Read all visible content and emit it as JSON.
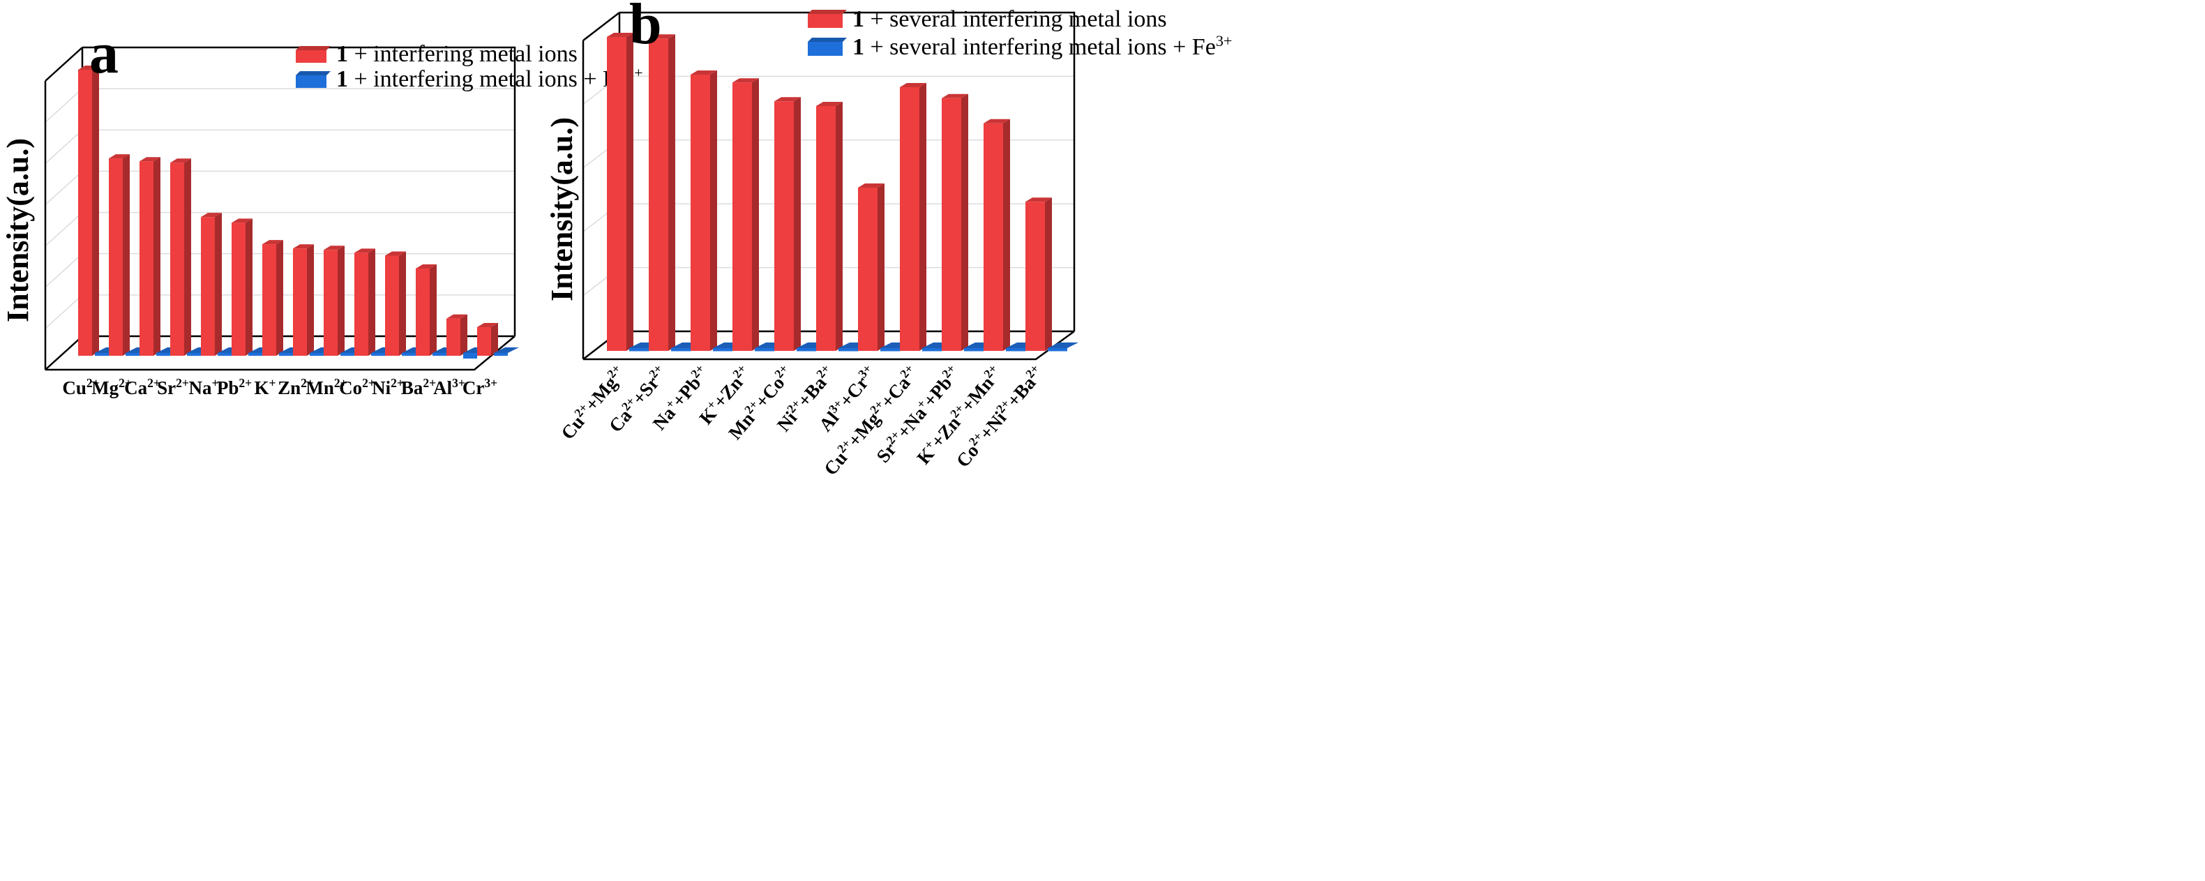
{
  "chart_data": [
    {
      "type": "bar",
      "panel_label": "a",
      "title": "",
      "ylabel": "Intensity(a.u.)",
      "xlabel": "",
      "ylim": [
        0,
        100
      ],
      "grid": true,
      "legend_position": "top-right",
      "categories": [
        {
          "base": "Cu",
          "sup": "2+"
        },
        {
          "base": "Mg",
          "sup": "2+"
        },
        {
          "base": "Ca",
          "sup": "2+"
        },
        {
          "base": "Sr",
          "sup": "2+"
        },
        {
          "base": "Na",
          "sup": "+"
        },
        {
          "base": "Pb",
          "sup": "2+"
        },
        {
          "base": "K",
          "sup": "+"
        },
        {
          "base": "Zn",
          "sup": "2+"
        },
        {
          "base": "Mn",
          "sup": "2+"
        },
        {
          "base": "Co",
          "sup": "2+"
        },
        {
          "base": "Ni",
          "sup": "2+"
        },
        {
          "base": "Ba",
          "sup": "2+"
        },
        {
          "base": "Al",
          "sup": "3+"
        },
        {
          "base": "Cr",
          "sup": "3+"
        }
      ],
      "series": [
        {
          "name_bold": "1",
          "name": " + interfering metal ions",
          "name_sup": "",
          "color": "#ee3e3f",
          "values": [
            100,
            69,
            68,
            67.5,
            48.5,
            46.5,
            39,
            37.5,
            37,
            36,
            35,
            30.5,
            13,
            10
          ]
        },
        {
          "name_bold": "1",
          "name": " + interfering metal ions + Fe",
          "name_sup": "3+",
          "color": "#1e6fd9",
          "values": [
            1,
            1,
            1,
            1,
            1,
            1,
            1,
            1,
            1,
            1,
            1,
            1,
            2.5,
            1
          ]
        }
      ]
    },
    {
      "type": "bar",
      "panel_label": "b",
      "title": "",
      "ylabel": "Intensity(a.u.)",
      "xlabel": "",
      "ylim": [
        0,
        100
      ],
      "grid": true,
      "legend_position": "top-right",
      "categories": [
        [
          {
            "base": "Cu",
            "sup": "2+"
          },
          {
            "base": "Mg",
            "sup": "2+"
          }
        ],
        [
          {
            "base": "Ca",
            "sup": "2+"
          },
          {
            "base": "Sr",
            "sup": "2+"
          }
        ],
        [
          {
            "base": "Na",
            "sup": "+"
          },
          {
            "base": "Pb",
            "sup": "2+"
          }
        ],
        [
          {
            "base": "K",
            "sup": "+"
          },
          {
            "base": "Zn",
            "sup": "2+"
          }
        ],
        [
          {
            "base": "Mn",
            "sup": "2+"
          },
          {
            "base": "Co",
            "sup": "2+"
          }
        ],
        [
          {
            "base": "Ni",
            "sup": "2+"
          },
          {
            "base": "Ba",
            "sup": "2+"
          }
        ],
        [
          {
            "base": "Al",
            "sup": "3+"
          },
          {
            "base": "Cr",
            "sup": "3+"
          }
        ],
        [
          {
            "base": "Cu",
            "sup": "2+"
          },
          {
            "base": "Mg",
            "sup": "2+"
          },
          {
            "base": "Ca",
            "sup": "2+"
          }
        ],
        [
          {
            "base": "Sr",
            "sup": "2+"
          },
          {
            "base": "Na",
            "sup": "+"
          },
          {
            "base": "Pb",
            "sup": "2+"
          }
        ],
        [
          {
            "base": "K",
            "sup": "+"
          },
          {
            "base": "Zn",
            "sup": "2+"
          },
          {
            "base": "Mn",
            "sup": "2+"
          }
        ],
        [
          {
            "base": "Co",
            "sup": "2+"
          },
          {
            "base": "Ni",
            "sup": "2+"
          },
          {
            "base": "Ba",
            "sup": "2+"
          }
        ]
      ],
      "series": [
        {
          "name_bold": "1",
          "name": " + several interfering metal ions",
          "name_sup": "",
          "color": "#ee3e3f",
          "values": [
            100,
            99.5,
            88,
            85.5,
            79.5,
            78,
            52,
            84,
            80.5,
            72.5,
            47.5
          ]
        },
        {
          "name_bold": "1",
          "name": " + several interfering metal ions + Fe",
          "name_sup": "3+",
          "color": "#1e6fd9",
          "values": [
            1,
            1,
            1,
            1,
            1,
            1,
            1,
            1,
            1,
            1,
            1
          ]
        }
      ]
    }
  ]
}
